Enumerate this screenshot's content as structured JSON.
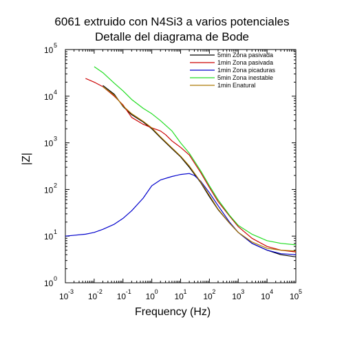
{
  "chart_data": {
    "type": "line",
    "title": "6061 extruido con N4Si3 a varios potenciales",
    "subtitle": "Detalle del diagrama de Bode",
    "xlabel": "Frequency (Hz)",
    "ylabel": "|Z|",
    "xscale": "log",
    "yscale": "log",
    "xlim": [
      0.001,
      100000
    ],
    "ylim": [
      1,
      100000
    ],
    "grid": false,
    "legend_position": "top-right",
    "x_ticks": [
      {
        "base": "10",
        "exp": "-3"
      },
      {
        "base": "10",
        "exp": "-2"
      },
      {
        "base": "10",
        "exp": "-1"
      },
      {
        "base": "10",
        "exp": "0"
      },
      {
        "base": "10",
        "exp": "1"
      },
      {
        "base": "10",
        "exp": "2"
      },
      {
        "base": "10",
        "exp": "3"
      },
      {
        "base": "10",
        "exp": "4"
      },
      {
        "base": "10",
        "exp": "5"
      }
    ],
    "y_ticks": [
      {
        "base": "10",
        "exp": "0"
      },
      {
        "base": "10",
        "exp": "1"
      },
      {
        "base": "10",
        "exp": "2"
      },
      {
        "base": "10",
        "exp": "3"
      },
      {
        "base": "10",
        "exp": "4"
      },
      {
        "base": "10",
        "exp": "5"
      }
    ],
    "series": [
      {
        "name": "5min Zona pasivada",
        "color": "#000000",
        "x": [
          0.02,
          0.05,
          0.1,
          0.2,
          0.5,
          1,
          2,
          5,
          10,
          20,
          50,
          100,
          200,
          500,
          1000,
          3000,
          10000,
          30000,
          100000
        ],
        "y": [
          17000,
          11000,
          6000,
          4000,
          2800,
          2000,
          1300,
          750,
          500,
          300,
          140,
          70,
          37,
          19,
          12,
          7,
          5,
          4,
          3.6
        ]
      },
      {
        "name": "1min Zona pasivada",
        "color": "#cc0000",
        "x": [
          0.005,
          0.01,
          0.02,
          0.05,
          0.1,
          0.2,
          0.5,
          1,
          2,
          3,
          5,
          10,
          20,
          50,
          100,
          200,
          500,
          1000,
          3000,
          10000,
          30000,
          100000
        ],
        "y": [
          24000,
          20000,
          16000,
          10000,
          6500,
          3500,
          2500,
          2100,
          1800,
          1500,
          1100,
          800,
          550,
          230,
          110,
          55,
          27,
          16,
          9,
          6,
          5,
          4.6
        ]
      },
      {
        "name": "1min Zona picaduras",
        "color": "#0000cc",
        "x": [
          0.001,
          0.005,
          0.01,
          0.02,
          0.05,
          0.1,
          0.2,
          0.5,
          1,
          2,
          5,
          10,
          20,
          30,
          50,
          100,
          200,
          500,
          1000,
          3000,
          10000,
          30000,
          100000
        ],
        "y": [
          10,
          11,
          12,
          14,
          18,
          24,
          35,
          65,
          120,
          160,
          190,
          210,
          220,
          200,
          150,
          85,
          45,
          20,
          12,
          7,
          5,
          4.2,
          4
        ]
      },
      {
        "name": "5min Zona inestable",
        "color": "#22dd22",
        "x": [
          0.01,
          0.02,
          0.05,
          0.1,
          0.2,
          0.5,
          1,
          2,
          5,
          10,
          20,
          50,
          100,
          200,
          500,
          1000,
          3000,
          10000,
          30000,
          100000
        ],
        "y": [
          43000,
          32000,
          19000,
          13000,
          8500,
          5500,
          4200,
          3000,
          1800,
          1000,
          600,
          250,
          120,
          60,
          28,
          17,
          11,
          8,
          7,
          6.5
        ]
      },
      {
        "name": "1min Enatural",
        "color": "#aa7700",
        "x": [
          0.02,
          0.05,
          0.1,
          0.2,
          0.5,
          1,
          2,
          5,
          10,
          20,
          50,
          100,
          200,
          500,
          1000,
          3000,
          10000,
          30000,
          100000
        ],
        "y": [
          16000,
          10500,
          6200,
          4200,
          2900,
          2100,
          1350,
          780,
          520,
          320,
          145,
          75,
          38,
          19,
          12,
          7.5,
          5.5,
          5,
          4.8
        ]
      }
    ]
  }
}
